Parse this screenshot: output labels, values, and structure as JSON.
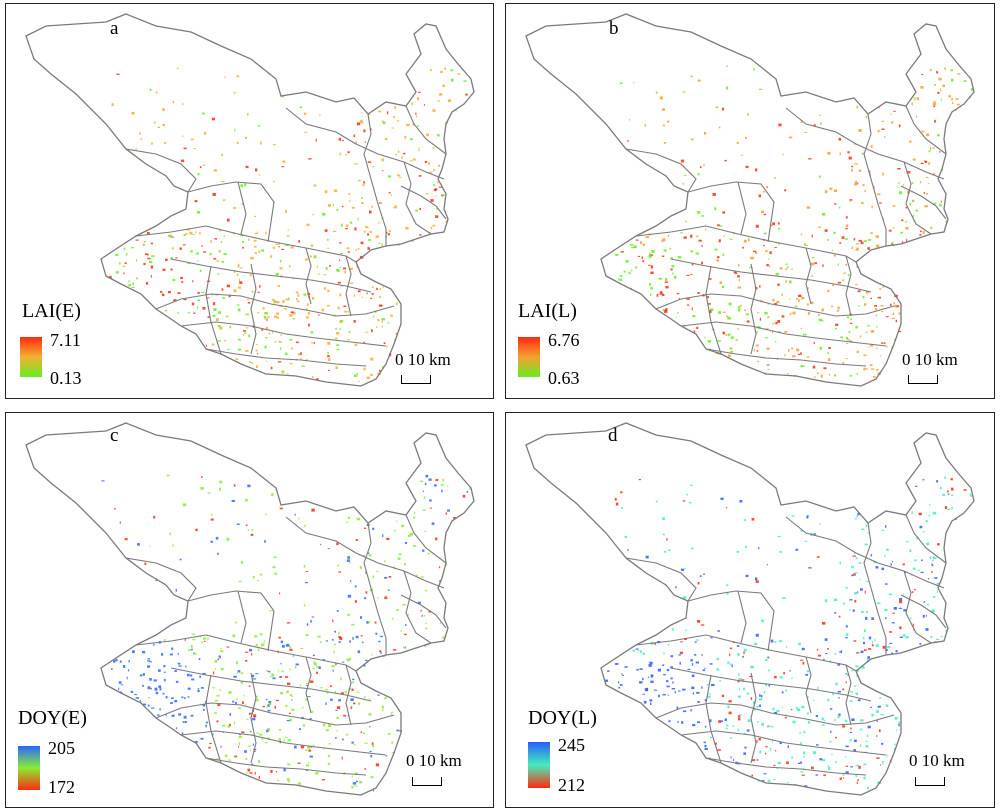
{
  "panels": [
    {
      "letter": "a",
      "legend_title": "LAI(E)",
      "max_label": "7.11",
      "min_label": "0.13",
      "colors": {
        "low": "#66ee22",
        "mid": "#f5b030",
        "high": "#ff2a10"
      }
    },
    {
      "letter": "b",
      "legend_title": "LAI(L)",
      "max_label": "6.76",
      "min_label": "0.63",
      "colors": {
        "low": "#66ee22",
        "mid": "#f5a030",
        "high": "#ff2a10"
      }
    },
    {
      "letter": "c",
      "legend_title": "DOY(E)",
      "max_label": "205",
      "min_label": "172",
      "colors": {
        "low": "#ff2a10",
        "mid": "#88ee33",
        "high": "#2a66ff"
      }
    },
    {
      "letter": "d",
      "legend_title": "DOY(L)",
      "max_label": "245",
      "min_label": "212",
      "colors": {
        "low": "#ff2a10",
        "mid": "#44eebb",
        "high": "#2a5cff"
      }
    }
  ],
  "scale_label": "0  10 km",
  "boundary_color": "#7a7a7a"
}
